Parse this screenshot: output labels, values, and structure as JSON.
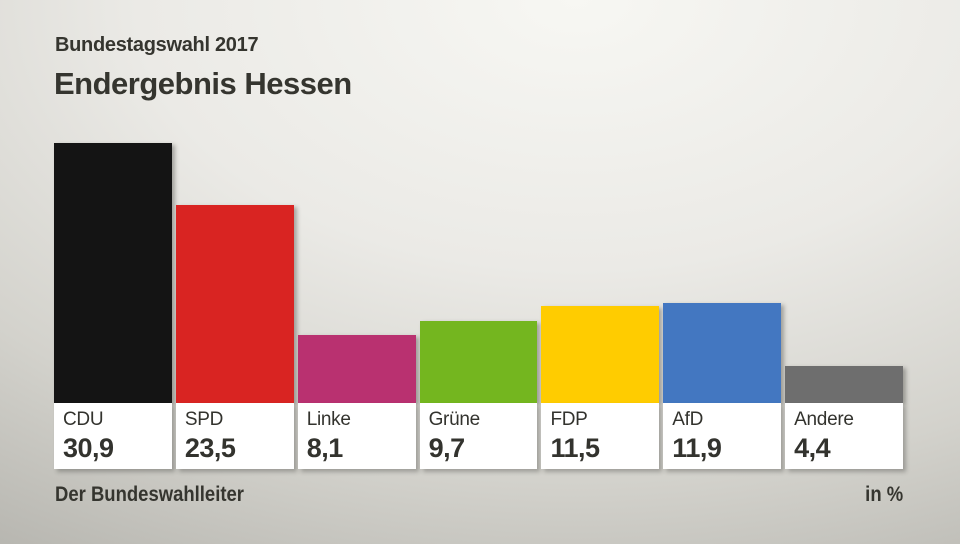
{
  "header": {
    "kicker": "Bundestagswahl 2017",
    "title": "Endergebnis Hessen"
  },
  "footer": {
    "source": "Der Bundeswahlleiter",
    "unit_label": "in %"
  },
  "chart_data": {
    "type": "bar",
    "title": "Endergebnis Hessen",
    "subtitle": "Bundestagswahl 2017",
    "categories": [
      "CDU",
      "SPD",
      "Linke",
      "Grüne",
      "FDP",
      "AfD",
      "Andere"
    ],
    "values": [
      30.9,
      23.5,
      8.1,
      9.7,
      11.5,
      11.9,
      4.4
    ],
    "value_labels": [
      "30,9",
      "23,5",
      "8,1",
      "9,7",
      "11,5",
      "11,9",
      "4,4"
    ],
    "bar_colors": [
      "#141414",
      "#d92422",
      "#b93170",
      "#74b61f",
      "#ffcc00",
      "#4377c1",
      "#6e6e6e"
    ],
    "unit": "in %",
    "ylim": [
      0,
      31
    ],
    "grid": false,
    "legend": "none"
  },
  "style": {
    "text_color": "#35352f",
    "panel_color": "#ffffff"
  }
}
